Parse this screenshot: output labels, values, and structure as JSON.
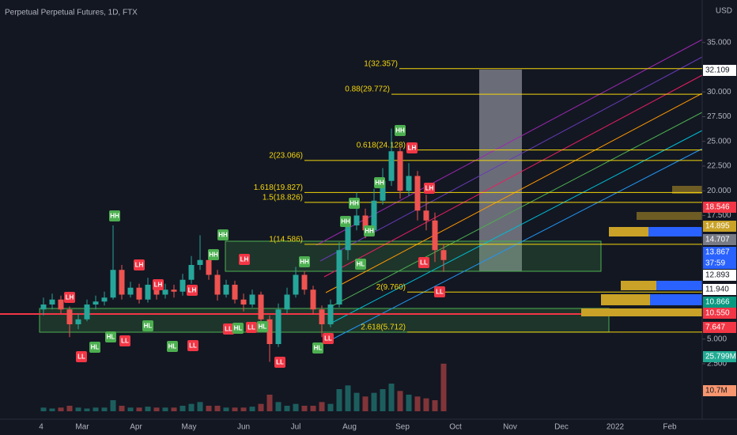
{
  "chart_data": {
    "type": "candlestick",
    "title": "Perpetual Perpetual Futures, 1D, FTX",
    "currency": "USD",
    "ylim": [
      -2.3,
      39.3
    ],
    "yticks": [
      {
        "value": 35,
        "label": "35.000"
      },
      {
        "value": 30,
        "label": "30.000"
      },
      {
        "value": 27.5,
        "label": "27.500"
      },
      {
        "value": 25,
        "label": "25.000"
      },
      {
        "value": 22.5,
        "label": "22.500"
      },
      {
        "value": 20,
        "label": "20.000"
      },
      {
        "value": 17.5,
        "label": "17.500"
      },
      {
        "value": 5,
        "label": "5.000"
      },
      {
        "value": 2.5,
        "label": "2.500"
      }
    ],
    "time_labels": [
      "4",
      "Mar",
      "Apr",
      "May",
      "Jun",
      "Jul",
      "Aug",
      "Sep",
      "Oct",
      "Nov",
      "Dec",
      "2022",
      "Feb"
    ],
    "open": [
      8.0,
      8.5,
      9.0,
      8.0,
      6.5,
      7.0,
      8.5,
      8.8,
      9.2,
      12.0,
      9.5,
      10.2,
      9.0,
      10.5,
      9.5,
      10.0,
      9.8,
      11.0,
      12.5,
      13.0,
      11.5,
      9.5,
      10.5,
      9.0,
      8.5,
      9.5,
      7.0,
      4.5,
      8.0,
      9.5,
      11.5,
      10.0,
      8.0,
      6.5,
      8.5,
      14.0,
      16.5,
      17.5,
      16.0,
      19.0,
      21.0,
      24.0,
      20.0,
      21.5,
      18.0,
      17.0,
      14.0
    ],
    "high": [
      9.2,
      9.6,
      9.4,
      8.3,
      7.6,
      9.0,
      9.4,
      9.8,
      16.5,
      12.5,
      10.8,
      10.6,
      11.2,
      11.0,
      10.6,
      10.5,
      11.6,
      13.4,
      15.5,
      13.4,
      12.0,
      11.0,
      10.9,
      9.6,
      10.0,
      9.8,
      7.4,
      8.6,
      10.2,
      12.3,
      11.9,
      10.4,
      8.4,
      9.0,
      14.8,
      17.4,
      19.8,
      18.2,
      20.2,
      22.3,
      26.3,
      24.5,
      22.8,
      22.0,
      19.6,
      17.8,
      14.6
    ],
    "low": [
      7.4,
      8.0,
      7.6,
      5.2,
      6.0,
      6.8,
      8.0,
      8.4,
      9.0,
      9.0,
      9.2,
      8.6,
      8.7,
      9.0,
      9.1,
      9.2,
      9.4,
      10.6,
      12.0,
      11.0,
      8.9,
      9.2,
      8.6,
      7.8,
      8.2,
      6.5,
      2.7,
      4.2,
      7.6,
      9.2,
      9.5,
      7.5,
      5.2,
      6.2,
      8.2,
      13.0,
      16.0,
      15.2,
      15.8,
      18.6,
      20.5,
      19.2,
      19.5,
      17.0,
      16.0,
      12.8,
      11.8
    ],
    "close": [
      8.5,
      9.0,
      8.0,
      6.5,
      7.0,
      8.5,
      8.8,
      9.2,
      12.0,
      9.5,
      10.2,
      9.0,
      10.5,
      9.5,
      10.0,
      9.8,
      11.0,
      12.5,
      13.0,
      11.5,
      9.5,
      10.5,
      9.0,
      8.5,
      9.5,
      7.0,
      4.5,
      8.0,
      9.5,
      11.5,
      10.0,
      8.0,
      6.5,
      8.5,
      14.0,
      16.5,
      17.5,
      16.0,
      19.0,
      21.0,
      24.0,
      20.0,
      21.5,
      18.0,
      17.0,
      14.0,
      13.0
    ],
    "volume": [
      2,
      1.5,
      2,
      3,
      2,
      1.5,
      2,
      2,
      6,
      3,
      2,
      2,
      2.5,
      2,
      2,
      2,
      3,
      4,
      5,
      3,
      3,
      2,
      2,
      2,
      2.5,
      4,
      9,
      5,
      3,
      4,
      3,
      3,
      5,
      4,
      12,
      14,
      10,
      8,
      10,
      12,
      15,
      11,
      9,
      8,
      7,
      6,
      25.799
    ],
    "up_color": "#26a69a",
    "down_color": "#ef5350",
    "fib_levels": [
      {
        "label": "1(32.357)",
        "value": 32.357
      },
      {
        "label": "0.88(29.772)",
        "value": 29.772
      },
      {
        "label": "0.618(24.128)",
        "value": 24.128
      },
      {
        "label": "2(23.066)",
        "value": 23.066
      },
      {
        "label": "1.618(19.827)",
        "value": 19.827
      },
      {
        "label": "1.5(18.826)",
        "value": 18.826
      },
      {
        "label": "1(14.586)",
        "value": 14.586
      },
      {
        "label": "2(9.760)",
        "value": 9.76
      },
      {
        "label": "2.618(5.712)",
        "value": 5.712
      }
    ],
    "pivots": [
      "LH",
      "LL",
      "HL",
      "HL",
      "LL",
      "HH",
      "LH",
      "HL",
      "LH",
      "HL",
      "LH",
      "HH",
      "HH",
      "LL",
      "LL",
      "HL",
      "LH",
      "LL",
      "HL",
      "LL",
      "HH",
      "HL",
      "LL",
      "HH",
      "HH",
      "HL",
      "HH",
      "HH",
      "HH",
      "LH",
      "LH",
      "LL",
      "LL"
    ],
    "price_badges": [
      {
        "label": "32.109",
        "color": "#ffffff"
      },
      {
        "label": "18.546",
        "color": "#f23645"
      },
      {
        "label": "14.895",
        "color": "#c9a227"
      },
      {
        "label": "14.707",
        "color": "#787b86"
      },
      {
        "label": "13.867",
        "color": "#2962ff"
      },
      {
        "label": "37:59",
        "color": "#2962ff"
      },
      {
        "label": "12.893",
        "color": "#ffffff"
      },
      {
        "label": "11.940",
        "color": "#ffffff"
      },
      {
        "label": "10.866",
        "color": "#089981"
      },
      {
        "label": "10.550",
        "color": "#f23645"
      },
      {
        "label": "7.647",
        "color": "#f23645"
      },
      {
        "label": "25.799M",
        "color": "#22ab94"
      },
      {
        "label": "10.7M",
        "color": "#f7966f"
      }
    ]
  }
}
